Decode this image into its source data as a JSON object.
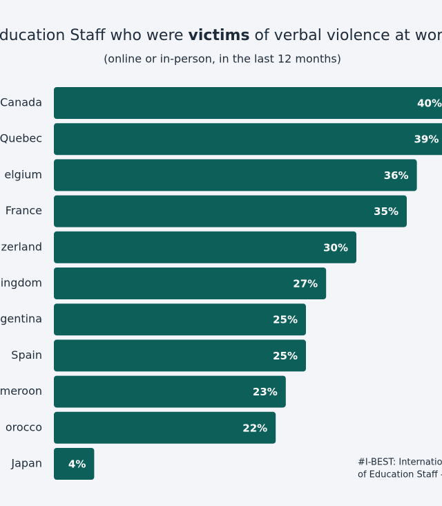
{
  "chart_data": {
    "type": "bar",
    "orientation": "horizontal",
    "title_parts": [
      "ducation Staff who were ",
      "victims",
      " of verbal violence at wor"
    ],
    "subtitle": "(online or in-person, in the last 12 months)",
    "categories": [
      "Canada",
      "Quebec",
      "elgium",
      "France",
      "zerland",
      "ingdom",
      "gentina",
      "Spain",
      "meroon",
      "orocco",
      "Japan"
    ],
    "values": [
      40,
      39,
      36,
      35,
      30,
      27,
      25,
      25,
      23,
      22,
      4
    ],
    "value_labels": [
      "40%",
      "39%",
      "36%",
      "35%",
      "30%",
      "27%",
      "25%",
      "25%",
      "23%",
      "22%",
      "4%"
    ],
    "color": "#0d5f5a",
    "footnote": [
      "#I-BEST: Internatio",
      "of Education Staff -"
    ]
  }
}
